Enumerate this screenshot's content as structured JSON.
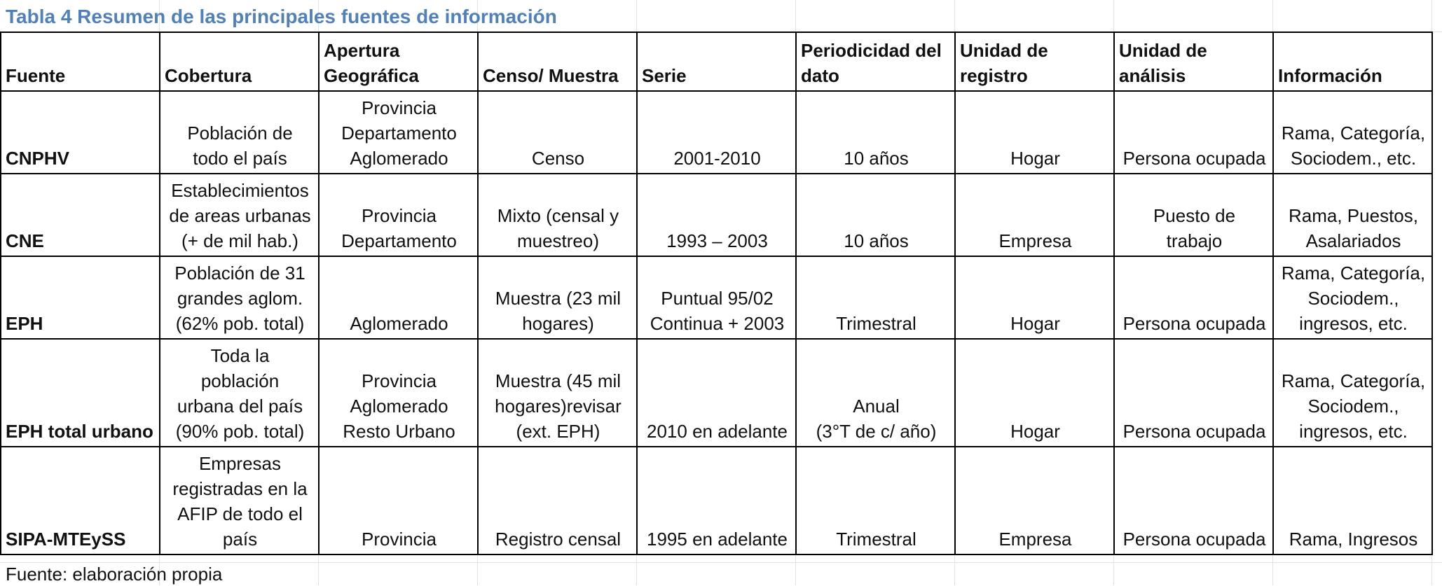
{
  "title": "Tabla 4 Resumen de las principales fuentes de información",
  "headers": [
    [
      "Fuente"
    ],
    [
      "Cobertura"
    ],
    [
      "Apertura",
      "Geográfica"
    ],
    [
      "Censo/ Muestra"
    ],
    [
      "Serie"
    ],
    [
      "Periodicidad del",
      "dato"
    ],
    [
      "Unidad de",
      "registro"
    ],
    [
      "Unidad de",
      "análisis"
    ],
    [
      "Información"
    ]
  ],
  "rows": [
    {
      "fuente": "CNPHV",
      "cells": [
        [
          "Población de",
          "todo el país"
        ],
        [
          "Provincia",
          "Departamento",
          "Aglomerado"
        ],
        [
          "Censo"
        ],
        [
          "2001-2010"
        ],
        [
          "10 años"
        ],
        [
          "Hogar"
        ],
        [
          "Persona ocupada"
        ],
        [
          "Rama, Categoría,",
          "Sociodem., etc."
        ]
      ]
    },
    {
      "fuente": "CNE",
      "cells": [
        [
          "Establecimientos",
          "de areas urbanas",
          "(+ de mil hab.)"
        ],
        [
          "Provincia",
          "Departamento"
        ],
        [
          "Mixto (censal y",
          "muestreo)"
        ],
        [
          "1993 – 2003"
        ],
        [
          "10 años"
        ],
        [
          "Empresa"
        ],
        [
          "Puesto de",
          "trabajo"
        ],
        [
          "Rama, Puestos,",
          "Asalariados"
        ]
      ]
    },
    {
      "fuente": "EPH",
      "cells": [
        [
          "Población de 31",
          "grandes aglom.",
          "(62% pob. total)"
        ],
        [
          "Aglomerado"
        ],
        [
          "Muestra (23 mil",
          "hogares)"
        ],
        [
          "Puntual 95/02",
          "Continua + 2003"
        ],
        [
          "Trimestral"
        ],
        [
          "Hogar"
        ],
        [
          "Persona ocupada"
        ],
        [
          "Rama, Categoría,",
          "Sociodem.,",
          "ingresos, etc."
        ]
      ]
    },
    {
      "fuente": "EPH total urbano",
      "cells": [
        [
          "Toda la",
          "población",
          "urbana del país",
          "(90% pob. total)"
        ],
        [
          "Provincia",
          "Aglomerado",
          "Resto Urbano"
        ],
        [
          "Muestra (45 mil",
          "hogares)revisar",
          "(ext. EPH)"
        ],
        [
          "2010 en adelante"
        ],
        [
          "Anual",
          "(3°T de c/ año)"
        ],
        [
          "Hogar"
        ],
        [
          "Persona ocupada"
        ],
        [
          "Rama, Categoría,",
          "Sociodem.,",
          "ingresos, etc."
        ]
      ]
    },
    {
      "fuente": "SIPA-MTEySS",
      "cells": [
        [
          "Empresas",
          "registradas en la",
          "AFIP de todo el",
          "país"
        ],
        [
          "Provincia"
        ],
        [
          "Registro censal"
        ],
        [
          "1995 en adelante"
        ],
        [
          "Trimestral"
        ],
        [
          "Empresa"
        ],
        [
          "Persona ocupada"
        ],
        [
          "Rama, Ingresos"
        ]
      ]
    }
  ],
  "footer": "Fuente: elaboración propia"
}
